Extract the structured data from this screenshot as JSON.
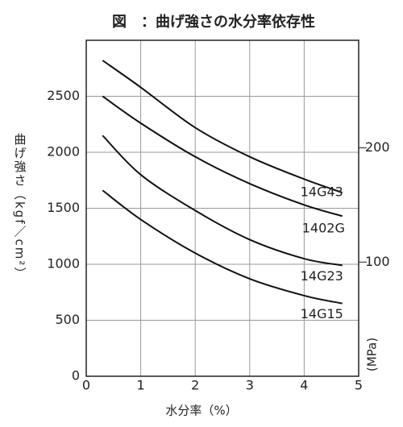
{
  "chart_data": {
    "type": "line",
    "title": "図　：曲げ強さの水分率依存性",
    "y_label": "曲げ強さ（kgf／cm²）",
    "y2_label": "(MPa)",
    "x_label": "水分率（%）",
    "x": [
      0.3,
      1,
      2,
      3,
      4,
      4.7
    ],
    "series": [
      {
        "name": "14G43",
        "color": "#111111",
        "values": [
          2820,
          2580,
          2220,
          1960,
          1760,
          1640
        ]
      },
      {
        "name": "1402G",
        "color": "#111111",
        "values": [
          2500,
          2260,
          1960,
          1720,
          1530,
          1430
        ]
      },
      {
        "name": "14G23",
        "color": "#111111",
        "values": [
          2150,
          1800,
          1480,
          1220,
          1050,
          990
        ]
      },
      {
        "name": "14G15",
        "color": "#111111",
        "values": [
          1660,
          1400,
          1100,
          870,
          720,
          650
        ]
      }
    ],
    "xlim": [
      0,
      5
    ],
    "xticks": [
      0,
      1,
      2,
      3,
      4,
      5
    ],
    "ylim": [
      0,
      3000
    ],
    "yticks": [
      0,
      500,
      1000,
      1500,
      2000,
      2500
    ],
    "y2lim": [
      0,
      294.2
    ],
    "y2ticks": [
      100,
      200
    ],
    "grid": true
  }
}
